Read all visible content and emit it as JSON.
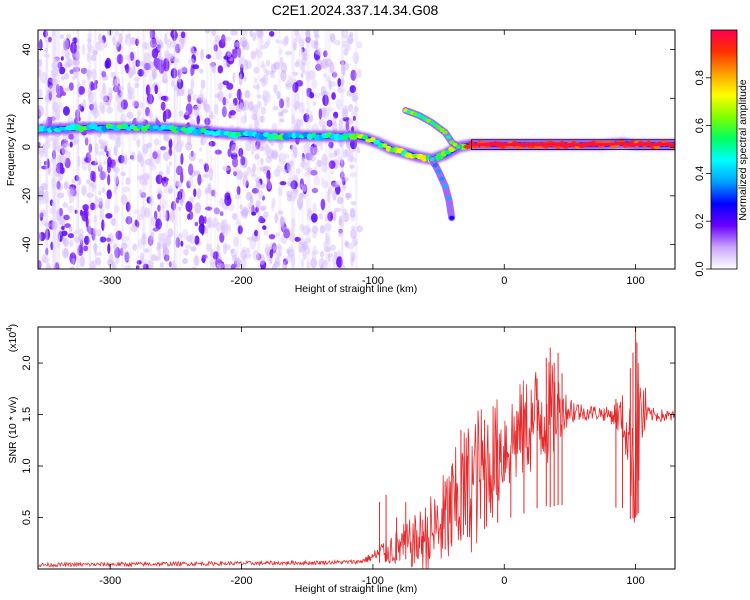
{
  "title": "C2E1.2024.337.14.34.G08",
  "chart_data": [
    {
      "type": "heatmap",
      "xlabel": "Height of straight line (km)",
      "ylabel": "Frequency (Hz)",
      "xlim": [
        -355,
        130
      ],
      "ylim": [
        -50,
        48
      ],
      "x_ticks": [
        -300,
        -200,
        -100,
        0,
        100
      ],
      "y_ticks": [
        -40,
        -20,
        0,
        20,
        40
      ],
      "x_tick_labels": [
        "-300",
        "-200",
        "-100",
        "0",
        "100"
      ],
      "y_tick_labels": [
        "-40",
        "-20",
        "0",
        "20",
        "40"
      ],
      "colorbar": {
        "label": "Normalized spectral amplitude",
        "range": [
          0,
          1
        ],
        "ticks": [
          0.0,
          0.2,
          0.4,
          0.6,
          0.8
        ],
        "tick_labels": [
          "0.0",
          "0.2",
          "0.4",
          "0.6",
          "0.8"
        ],
        "colormap": [
          "#ffffff",
          "#c9a6ff",
          "#6a00ff",
          "#0000ff",
          "#00a0ff",
          "#00ffff",
          "#00ff60",
          "#80ff00",
          "#ffff00",
          "#ffa000",
          "#ff3000",
          "#ff0050"
        ]
      },
      "ridge": {
        "x": [
          -355,
          -320,
          -290,
          -270,
          -250,
          -230,
          -210,
          -190,
          -170,
          -150,
          -130,
          -115,
          -105,
          -95,
          -85,
          -75,
          -65,
          -55,
          -45,
          -35,
          -25,
          0,
          25,
          50,
          75,
          90,
          100,
          130
        ],
        "y": [
          7,
          8,
          8,
          8,
          7.5,
          6.5,
          5.5,
          5,
          4.5,
          4.5,
          4.5,
          4.5,
          3.5,
          1.5,
          -1,
          -2.5,
          -4,
          -5,
          -3,
          0,
          1,
          1,
          1,
          1,
          1,
          1.5,
          1,
          1
        ]
      },
      "scatter_region": {
        "x": [
          -355,
          -110
        ],
        "y": [
          -50,
          48
        ]
      },
      "branch": {
        "x": [
          -75,
          -65,
          -55,
          -45,
          -40,
          -35
        ],
        "y": [
          15,
          13,
          10,
          6,
          2,
          0
        ]
      },
      "tail": {
        "x": [
          -55,
          -50,
          -45,
          -42,
          -40
        ],
        "y": [
          -5,
          -10,
          -16,
          -22,
          -29
        ]
      },
      "band_box": {
        "x": [
          -25,
          130
        ],
        "y": [
          -1,
          3
        ]
      }
    },
    {
      "type": "line",
      "xlabel": "Height of straight line (km)",
      "ylabel": "SNR (10 * v/v)",
      "exponent_label": "(x10",
      "exponent_power": "4",
      "exponent_close": ")",
      "xlim": [
        -355,
        130
      ],
      "ylim": [
        0,
        23500
      ],
      "x_ticks": [
        -300,
        -200,
        -100,
        0,
        100
      ],
      "y_ticks": [
        5000,
        10000,
        15000,
        20000
      ],
      "x_tick_labels": [
        "-300",
        "-200",
        "-100",
        "0",
        "100"
      ],
      "y_tick_labels": [
        "0.5",
        "1.0",
        "1.5",
        "2.0"
      ],
      "series": [
        {
          "color": "#e8282a",
          "envelope_x": [
            -355,
            -300,
            -250,
            -200,
            -150,
            -110,
            -100,
            -90,
            -80,
            -70,
            -60,
            -50,
            -40,
            -30,
            -20,
            -10,
            0,
            10,
            20,
            30,
            35,
            40,
            50,
            60,
            70,
            80,
            90,
            95,
            100,
            105,
            110,
            120,
            130
          ],
          "envelope_y": [
            400,
            450,
            500,
            550,
            600,
            700,
            1200,
            1800,
            2200,
            2500,
            3000,
            4000,
            5500,
            7500,
            9000,
            10500,
            12000,
            13000,
            14000,
            15500,
            15000,
            15500,
            15500,
            15200,
            15200,
            15000,
            14800,
            12000,
            12500,
            15200,
            15000,
            14900,
            14800
          ],
          "noise_x": [
            -355,
            -110,
            -100,
            -90,
            -80,
            -70,
            -60,
            -50,
            -40,
            -30,
            -20,
            -10,
            0,
            10,
            20,
            30,
            35,
            40,
            45,
            60,
            80,
            95,
            98,
            100,
            102,
            110,
            130
          ],
          "noise_y": [
            200,
            200,
            500,
            1500,
            2000,
            2500,
            3500,
            4500,
            5500,
            6500,
            7000,
            6000,
            5000,
            5000,
            5000,
            6000,
            5000,
            4000,
            2000,
            800,
            700,
            3000,
            8000,
            10000,
            7000,
            700,
            600
          ]
        }
      ],
      "spikes": {
        "x": [
          -95,
          -90,
          -82,
          -75,
          -62,
          -45,
          -40,
          -33,
          -28,
          -15,
          -5,
          5,
          15,
          25,
          32,
          35,
          38,
          41,
          44,
          85,
          90,
          96,
          98,
          100,
          101,
          102
        ],
        "y": [
          6500,
          7200,
          5000,
          6500,
          4800,
          8500,
          10000,
          13500,
          11000,
          14500,
          12500,
          12000,
          15500,
          18500,
          20500,
          21500,
          20000,
          21000,
          19000,
          16500,
          15000,
          19500,
          21000,
          23500,
          22000,
          18000
        ]
      }
    }
  ]
}
